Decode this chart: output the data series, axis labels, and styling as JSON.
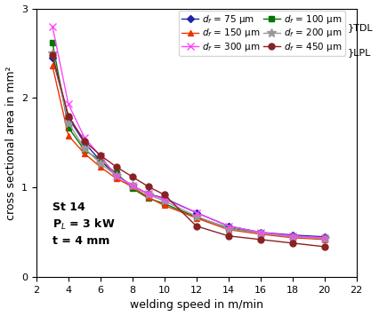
{
  "xlabel": "welding speed in m/min",
  "ylabel": "cross sectional area in mm²",
  "xlim": [
    2,
    22
  ],
  "ylim": [
    0,
    3
  ],
  "xticks": [
    2,
    4,
    6,
    8,
    10,
    12,
    14,
    16,
    18,
    20,
    22
  ],
  "yticks": [
    0,
    1,
    2,
    3
  ],
  "annotation_line1": "St 14",
  "annotation_line2": "P$_L$ = 3 kW",
  "annotation_line3": "t = 4 mm",
  "series": [
    {
      "label": "$d_f$ = 75 μm",
      "color": "#2222aa",
      "marker": "D",
      "markersize": 4,
      "markerfacecolor": "#2222aa",
      "x": [
        3,
        4,
        5,
        6,
        7,
        8,
        9,
        10,
        12,
        14,
        16,
        18,
        20
      ],
      "y": [
        2.45,
        1.78,
        1.5,
        1.3,
        1.14,
        1.02,
        0.93,
        0.88,
        0.72,
        0.57,
        0.5,
        0.47,
        0.45
      ]
    },
    {
      "label": "$d_f$ = 100 μm",
      "color": "#007700",
      "marker": "s",
      "markersize": 5,
      "markerfacecolor": "#007700",
      "x": [
        3,
        4,
        5,
        6,
        7,
        8,
        9,
        10,
        12,
        14,
        16,
        18,
        20
      ],
      "y": [
        2.62,
        1.67,
        1.42,
        1.3,
        1.16,
        0.99,
        0.88,
        0.82,
        0.67,
        0.55,
        0.49,
        0.45,
        0.44
      ]
    },
    {
      "label": "$d_f$ = 150 μm",
      "color": "#ee3300",
      "marker": "^",
      "markersize": 5,
      "markerfacecolor": "#ee3300",
      "x": [
        3,
        4,
        5,
        6,
        7,
        8,
        9,
        10,
        12,
        14,
        16,
        18,
        20
      ],
      "y": [
        2.36,
        1.58,
        1.38,
        1.23,
        1.1,
        1.01,
        0.89,
        0.8,
        0.66,
        0.53,
        0.48,
        0.44,
        0.42
      ]
    },
    {
      "label": "$d_f$ = 200 μm",
      "color": "#999999",
      "marker": "*",
      "markersize": 7,
      "markerfacecolor": "#999999",
      "x": [
        3,
        4,
        5,
        6,
        7,
        8,
        9,
        10,
        12,
        14,
        16,
        18,
        20
      ],
      "y": [
        2.5,
        1.72,
        1.44,
        1.27,
        1.13,
        1.02,
        0.92,
        0.85,
        0.68,
        0.54,
        0.49,
        0.45,
        0.43
      ]
    },
    {
      "label": "$d_f$ = 300 μm",
      "color": "#ff44ff",
      "marker": "x",
      "markersize": 6,
      "markerfacecolor": "#ff44ff",
      "x": [
        3,
        4,
        5,
        6,
        7,
        8,
        9,
        10,
        12,
        14,
        16,
        18,
        20
      ],
      "y": [
        2.8,
        1.93,
        1.56,
        1.35,
        1.13,
        1.02,
        0.93,
        0.87,
        0.72,
        0.57,
        0.5,
        0.46,
        0.44
      ]
    },
    {
      "label": "$d_f$ = 450 μm",
      "color": "#882222",
      "marker": "o",
      "markersize": 5,
      "markerfacecolor": "#882222",
      "x": [
        3,
        4,
        5,
        6,
        7,
        8,
        9,
        10,
        12,
        14,
        16,
        18,
        20
      ],
      "y": [
        2.48,
        1.8,
        1.52,
        1.36,
        1.23,
        1.12,
        1.01,
        0.92,
        0.57,
        0.46,
        0.42,
        0.38,
        0.34
      ]
    }
  ],
  "legend_order": [
    0,
    2,
    4,
    1,
    3,
    5
  ],
  "legend_fontsize": 7.5,
  "annot_fontsize": 9
}
